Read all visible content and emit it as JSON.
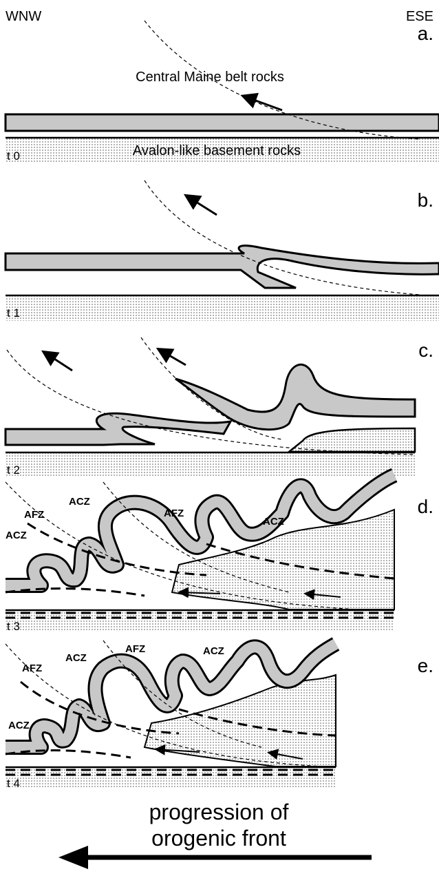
{
  "header": {
    "left": "WNW",
    "right": "ESE"
  },
  "panels": [
    {
      "label": "a.",
      "time": "t 0",
      "texts": [
        "Central Maine belt rocks",
        "Avalon-like basement rocks"
      ]
    },
    {
      "label": "b.",
      "time": "t 1"
    },
    {
      "label": "c.",
      "time": "t 2"
    },
    {
      "label": "d.",
      "time": "t 3",
      "zones": [
        "ACZ",
        "AFZ",
        "ACZ",
        "AFZ",
        "ACZ"
      ]
    },
    {
      "label": "e.",
      "time": "t 4",
      "zones": [
        "ACZ",
        "AFZ",
        "AFZ",
        "ACZ",
        "ACZ"
      ]
    }
  ],
  "footer": {
    "lines": [
      "progression of",
      "orogenic front"
    ]
  }
}
